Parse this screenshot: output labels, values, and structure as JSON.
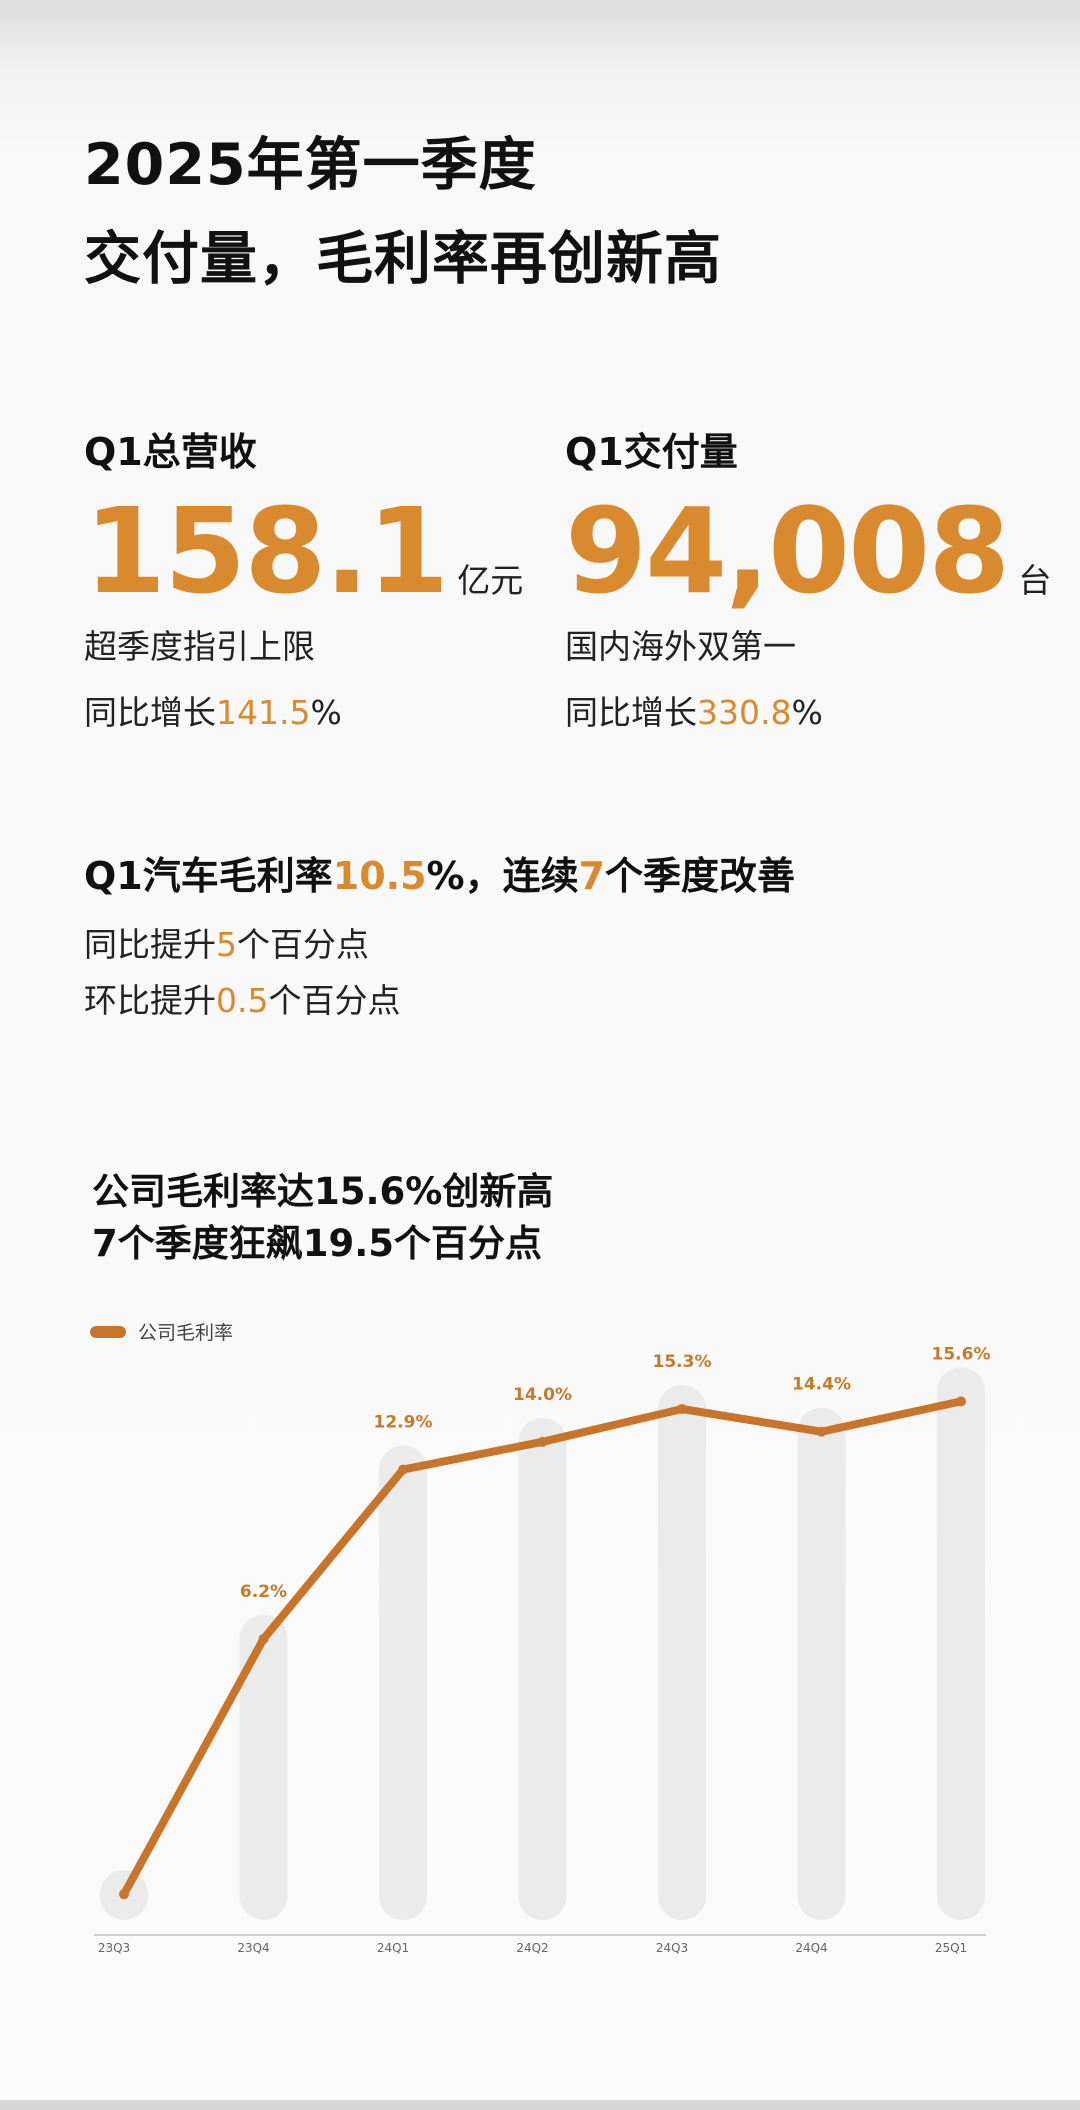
{
  "header": {
    "title_line1": "2025年第一季度",
    "title_line2": "交付量，毛利率再创新高"
  },
  "revenue": {
    "label": "Q1总营收",
    "value": "158.1",
    "unit": "亿元",
    "note": "超季度指引上限",
    "growth_prefix": "同比增长",
    "growth_value": "141.5",
    "growth_suffix": "%"
  },
  "deliveries": {
    "label": "Q1交付量",
    "value": "94,008",
    "unit": "台",
    "note": "国内海外双第一",
    "growth_prefix": "同比增长",
    "growth_value": "330.8",
    "growth_suffix": "%"
  },
  "car_margin": {
    "head_p1": "Q1汽车毛利率",
    "head_v1": "10.5",
    "head_p2": "%，连续",
    "head_v2": "7",
    "head_p3": "个季度改善",
    "yoy_prefix": "同比提升",
    "yoy_value": "5",
    "yoy_suffix": "个百分点",
    "qoq_prefix": "环比提升",
    "qoq_value": "0.5",
    "qoq_suffix": "个百分点"
  },
  "chart_section": {
    "title_line1": "公司毛利率达15.6%创新高",
    "title_line2": "7个季度狂飙19.5个百分点"
  },
  "colors": {
    "accent": "#d98a2e",
    "line": "#c8742a",
    "bar": "#ebebeb",
    "label": "#c47b2c"
  },
  "chart_data": {
    "type": "line",
    "categories": [
      "23Q3",
      "23Q4",
      "24Q1",
      "24Q2",
      "24Q3",
      "24Q4",
      "25Q1"
    ],
    "series": [
      {
        "name": "公司毛利率",
        "values": [
          -3.9,
          6.2,
          12.9,
          14.0,
          15.3,
          14.4,
          15.6
        ],
        "data_labels": [
          "",
          "6.2%",
          "12.9%",
          "14.0%",
          "15.3%",
          "14.4%",
          "15.6%"
        ]
      }
    ],
    "title": "",
    "xlabel": "",
    "ylabel": "",
    "ylim": [
      -5,
      17
    ],
    "grid": false,
    "legend": "top-left",
    "background_bars": true
  }
}
